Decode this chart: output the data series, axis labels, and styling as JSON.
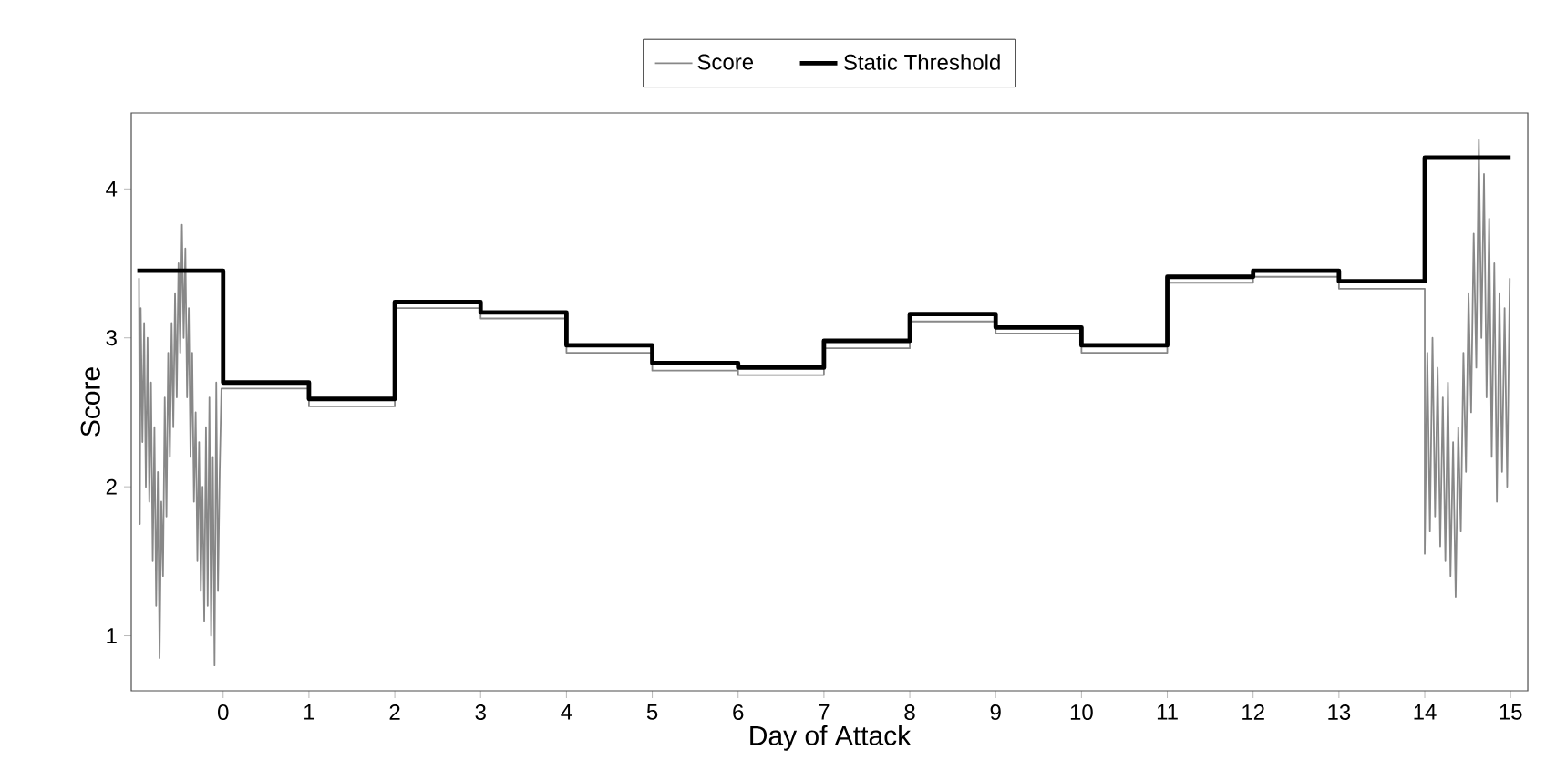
{
  "chart_data": {
    "type": "line",
    "xlabel": "Day of Attack",
    "ylabel": "Score",
    "xlim": [
      -1.07,
      15.2
    ],
    "ylim": [
      0.63,
      4.51
    ],
    "xticks": [
      0,
      1,
      2,
      3,
      4,
      5,
      6,
      7,
      8,
      9,
      10,
      11,
      12,
      13,
      14,
      15
    ],
    "yticks": [
      1,
      2,
      3,
      4
    ],
    "grid": false,
    "legend": "top",
    "series": [
      {
        "name": "Score",
        "color": "#888888",
        "x": [
          -0.98,
          -0.97,
          -0.96,
          -0.94,
          -0.92,
          -0.9,
          -0.88,
          -0.86,
          -0.84,
          -0.82,
          -0.8,
          -0.78,
          -0.76,
          -0.74,
          -0.72,
          -0.7,
          -0.68,
          -0.66,
          -0.64,
          -0.62,
          -0.6,
          -0.58,
          -0.56,
          -0.54,
          -0.52,
          -0.5,
          -0.48,
          -0.46,
          -0.44,
          -0.42,
          -0.4,
          -0.38,
          -0.36,
          -0.34,
          -0.32,
          -0.3,
          -0.28,
          -0.26,
          -0.24,
          -0.22,
          -0.2,
          -0.18,
          -0.16,
          -0.14,
          -0.12,
          -0.1,
          -0.08,
          -0.06,
          -0.04,
          -0.02,
          0,
          1,
          1,
          2,
          2,
          3,
          3,
          4,
          4,
          5,
          5,
          6,
          6,
          7,
          7,
          8,
          8,
          9,
          9,
          10,
          10,
          11,
          11,
          12,
          12,
          13,
          13,
          14,
          14,
          14.03,
          14.06,
          14.09,
          14.12,
          14.15,
          14.18,
          14.21,
          14.24,
          14.27,
          14.3,
          14.33,
          14.36,
          14.39,
          14.42,
          14.45,
          14.48,
          14.51,
          14.54,
          14.57,
          14.6,
          14.63,
          14.66,
          14.69,
          14.72,
          14.75,
          14.78,
          14.81,
          14.84,
          14.87,
          14.9,
          14.93,
          14.96,
          14.99
        ],
        "values": [
          3.4,
          1.75,
          3.2,
          2.3,
          3.1,
          2.0,
          3.0,
          1.9,
          2.7,
          1.5,
          2.4,
          1.2,
          2.1,
          0.85,
          1.9,
          1.4,
          2.6,
          1.8,
          2.9,
          2.2,
          3.1,
          2.4,
          3.3,
          2.6,
          3.5,
          2.9,
          3.76,
          3.0,
          3.6,
          2.6,
          3.2,
          2.2,
          2.9,
          1.9,
          2.5,
          1.5,
          2.3,
          1.3,
          2.0,
          1.1,
          2.4,
          1.2,
          2.6,
          1.0,
          2.2,
          0.8,
          2.7,
          1.3,
          2.1,
          2.66,
          2.66,
          2.66,
          2.54,
          2.54,
          3.2,
          3.2,
          3.13,
          3.13,
          2.9,
          2.9,
          2.78,
          2.78,
          2.75,
          2.75,
          2.93,
          2.93,
          3.11,
          3.11,
          3.03,
          3.03,
          2.9,
          2.9,
          3.37,
          3.37,
          3.41,
          3.41,
          3.33,
          3.33,
          1.55,
          2.9,
          1.7,
          3.0,
          1.8,
          2.8,
          1.6,
          2.6,
          1.5,
          2.7,
          1.4,
          2.3,
          1.26,
          2.4,
          1.7,
          2.9,
          2.1,
          3.3,
          2.5,
          3.7,
          2.8,
          4.33,
          3.0,
          4.1,
          2.6,
          3.8,
          2.2,
          3.5,
          1.9,
          3.3,
          2.1,
          3.2,
          2.0,
          3.4
        ]
      },
      {
        "name": "Static Threshold",
        "type": "step",
        "color": "#000000",
        "x": [
          -1,
          0,
          1,
          2,
          3,
          4,
          5,
          6,
          7,
          8,
          9,
          10,
          11,
          12,
          13,
          14,
          15
        ],
        "values": [
          3.45,
          2.7,
          2.59,
          3.24,
          3.17,
          2.95,
          2.83,
          2.8,
          2.98,
          3.16,
          3.07,
          2.95,
          3.41,
          3.45,
          3.38,
          4.21,
          4.21
        ]
      }
    ]
  }
}
